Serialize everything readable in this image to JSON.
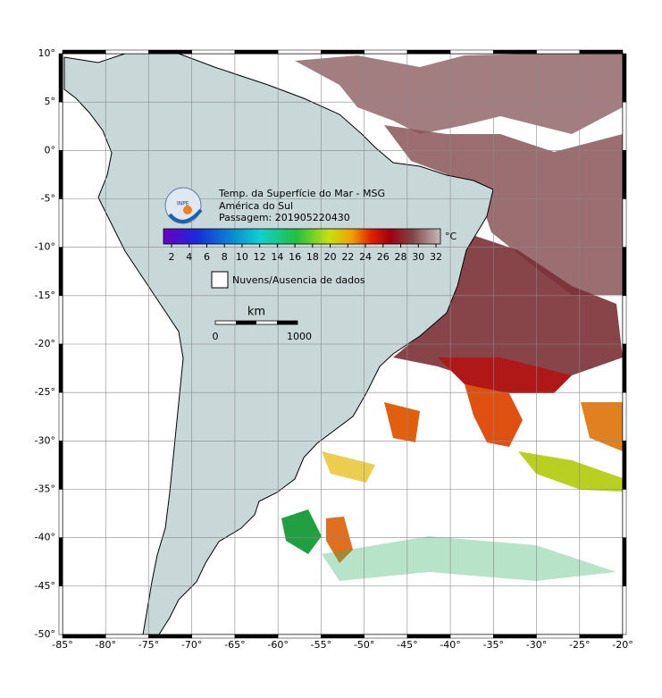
{
  "logo": "INPE",
  "header": {
    "title": "Temp. da Superfície do Mar - MSG",
    "region": "América do Sul",
    "pass": "Passagem: 201905220430"
  },
  "colorbar": {
    "ticks": [
      2,
      4,
      6,
      8,
      10,
      12,
      14,
      16,
      18,
      20,
      22,
      24,
      26,
      28,
      30,
      32
    ],
    "unit": "°C"
  },
  "legend": {
    "no_data": "Nuvens/Ausencia de dados"
  },
  "scale": {
    "unit": "km",
    "labels": [
      0,
      1000
    ]
  },
  "axes": {
    "lat": [
      "10°",
      "5°",
      "0°",
      "-5°",
      "-10°",
      "-15°",
      "-20°",
      "-25°",
      "-30°",
      "-35°",
      "-40°",
      "-45°",
      "-50°"
    ],
    "lon": [
      "-85°",
      "-80°",
      "-75°",
      "-70°",
      "-65°",
      "-60°",
      "-55°",
      "-50°",
      "-45°",
      "-40°",
      "-35°",
      "-30°",
      "-25°",
      "-20°"
    ]
  }
}
